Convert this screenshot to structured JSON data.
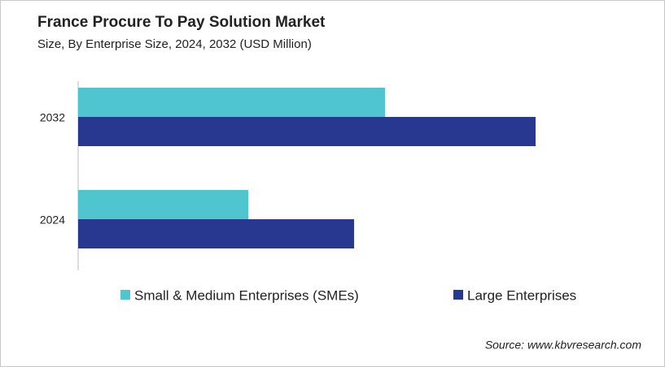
{
  "chart_data": {
    "type": "bar",
    "orientation": "horizontal",
    "title": "France Procure To Pay Solution Market",
    "subtitle": "Size, By Enterprise Size, 2024, 2032 (USD Million)",
    "categories": [
      "2032",
      "2024"
    ],
    "series": [
      {
        "name": "Small & Medium Enterprises (SMEs)",
        "color": "#4fc5cf",
        "values": [
          37.7,
          20.9
        ]
      },
      {
        "name": "Large Enterprises",
        "color": "#283891",
        "values": [
          56.2,
          33.9
        ]
      }
    ],
    "xlim": [
      0,
      62
    ],
    "source": "Source: www.kbvresearch.com"
  }
}
